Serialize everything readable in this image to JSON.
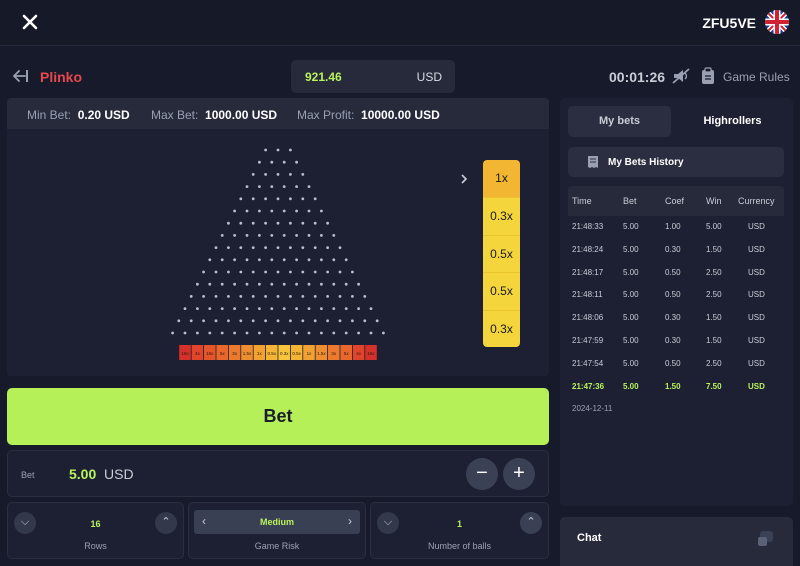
{
  "header": {
    "username": "ZFU5VE",
    "flag_icon": "uk-flag-icon",
    "close_icon": "close-icon"
  },
  "game": {
    "title": "Plinko",
    "timer": "00:01:26",
    "rules_label": "Game Rules"
  },
  "balance": {
    "value": "921.46",
    "currency": "USD"
  },
  "limits": {
    "min_label": "Min Bet:",
    "min_value": "0.20 USD",
    "max_label": "Max Bet:",
    "max_value": "1000.00 USD",
    "profit_label": "Max Profit:",
    "profit_value": "10000.00 USD"
  },
  "board": {
    "rows": 16,
    "slots": [
      "16x",
      "4x",
      "16x",
      "5x",
      "3x",
      "1.5x",
      "1x",
      "0.5x",
      "0.3x",
      "0.5x",
      "1x",
      "1.5x",
      "3x",
      "5x",
      "4x",
      "16x"
    ],
    "slot_colors": [
      "#d6302a",
      "#e0442a",
      "#e4552a",
      "#e9662c",
      "#ec7a2e",
      "#ef8e31",
      "#f2a233",
      "#f4b436",
      "#f6c53b",
      "#f4b436",
      "#f2a233",
      "#ef8e31",
      "#ec7a2e",
      "#e9662c",
      "#e0442a",
      "#d6302a"
    ],
    "peg_color": "#b9bfcf",
    "recent_multipliers": [
      "1x",
      "0.3x",
      "0.5x",
      "0.5x",
      "0.3x"
    ]
  },
  "bet_button": {
    "label": "Bet"
  },
  "bet_amount": {
    "label": "Bet",
    "value": "5.00",
    "currency": "USD",
    "minus": "−",
    "plus": "+"
  },
  "options": {
    "rows": {
      "value": "16",
      "label": "Rows"
    },
    "risk": {
      "value": "Medium",
      "label": "Game Risk"
    },
    "balls": {
      "value": "1",
      "label": "Number of balls"
    }
  },
  "side": {
    "tabs": [
      "My bets",
      "Highrollers"
    ],
    "history_label": "My Bets History",
    "columns": [
      "Time",
      "Bet",
      "Coef",
      "Win",
      "Currency"
    ],
    "rows": [
      [
        "21:48:33",
        "5.00",
        "1.00",
        "5.00",
        "USD"
      ],
      [
        "21:48:24",
        "5.00",
        "0.30",
        "1.50",
        "USD"
      ],
      [
        "21:48:17",
        "5.00",
        "0.50",
        "2.50",
        "USD"
      ],
      [
        "21:48:11",
        "5.00",
        "0.50",
        "2.50",
        "USD"
      ],
      [
        "21:48:06",
        "5.00",
        "0.30",
        "1.50",
        "USD"
      ],
      [
        "21:47:59",
        "5.00",
        "0.30",
        "1.50",
        "USD"
      ],
      [
        "21:47:54",
        "5.00",
        "0.50",
        "2.50",
        "USD"
      ],
      [
        "21:47:36",
        "5.00",
        "1.50",
        "7.50",
        "USD"
      ]
    ],
    "highlight_row": 7,
    "date": "2024-12-11"
  },
  "chat": {
    "label": "Chat"
  }
}
